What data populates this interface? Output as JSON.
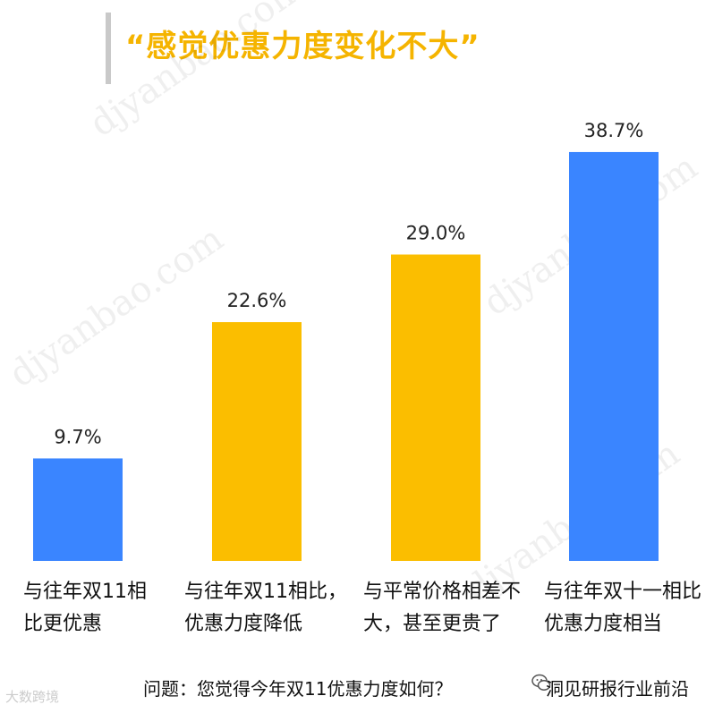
{
  "header": {
    "title": "“感觉优惠力度变化不大”"
  },
  "watermark": {
    "text": "djyanbao.com"
  },
  "chart_data": {
    "type": "bar",
    "categories": [
      "与往年双11相比更优惠",
      "与往年双11相比，优惠力度降低",
      "与平常价格相差不大，甚至更贵了",
      "与往年双十一相比优惠力度相当"
    ],
    "values": [
      9.7,
      22.6,
      29.0,
      38.7
    ],
    "value_labels": [
      "9.7%",
      "22.6%",
      "29.0%",
      "38.7%"
    ],
    "colors": [
      "#3a85ff",
      "#fbbe00",
      "#fbbe00",
      "#3a85ff"
    ],
    "ylim": [
      0,
      40
    ],
    "grid": false,
    "legend": "none"
  },
  "footer": {
    "question": "问题：您觉得今年双11优惠力度如何？",
    "source": "洞见研报行业前沿",
    "source_icon": "wechat-icon",
    "logo_text": "大数跨境"
  }
}
